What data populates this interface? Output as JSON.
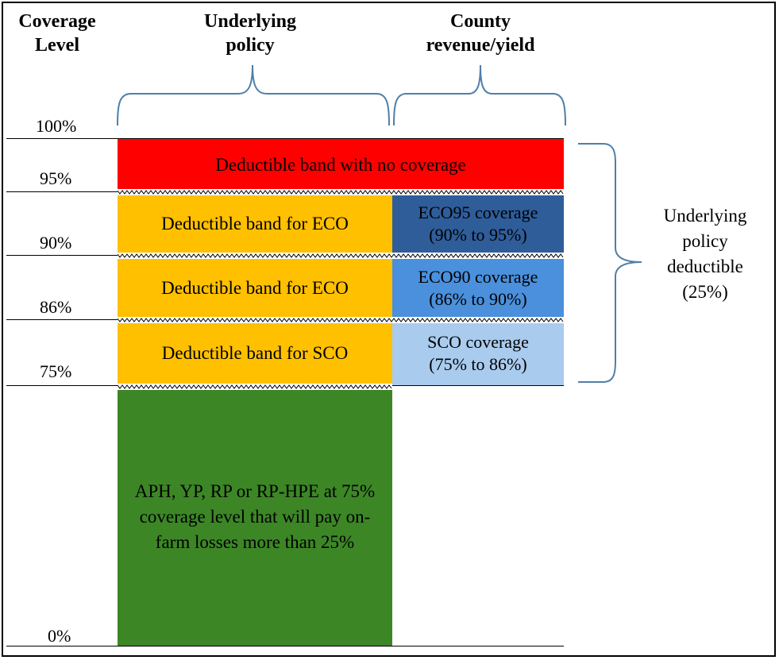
{
  "headers": {
    "coverage_level": "Coverage Level",
    "underlying_policy": "Underlying policy",
    "county": "County revenue/yield"
  },
  "levels": {
    "l100": "100%",
    "l95": "95%",
    "l90": "90%",
    "l86": "86%",
    "l75": "75%",
    "l0": "0%"
  },
  "bands": {
    "no_coverage": "Deductible band with no coverage",
    "eco_band_1": "Deductible band for ECO",
    "eco_band_2": "Deductible band for ECO",
    "sco_band": "Deductible band for SCO",
    "eco95": "ECO95 coverage (90% to 95%)",
    "eco90": "ECO90 coverage (86% to 90%)",
    "sco": "SCO coverage (75% to 86%)",
    "underlying": "APH, YP, RP or RP-HPE at 75% coverage level that will pay on-farm losses more than 25%"
  },
  "side_label": "Underlying policy deductible (25%)",
  "colors": {
    "red": "#ff0000",
    "orange": "#ffc000",
    "eco95_blue": "#2e5d99",
    "eco90_blue": "#4a90dc",
    "sco_blue": "#a9cbee",
    "green": "#3c8626",
    "bracket": "#4f7fa8"
  }
}
